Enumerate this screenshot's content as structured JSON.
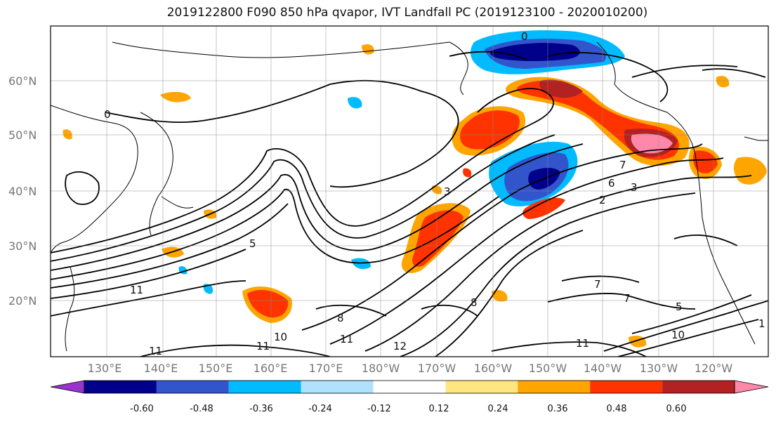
{
  "title": "2019122800 F090 850 hPa qvapor, IVT Landfall PC (2019123100 - 2020010200)",
  "lat_labels": [
    "60°N",
    "50°N",
    "40°N",
    "30°N",
    "20°N"
  ],
  "lon_labels": [
    "130°E",
    "140°E",
    "150°E",
    "160°E",
    "170°E",
    "180°W",
    "170°W",
    "160°W",
    "150°W",
    "140°W",
    "130°W",
    "120°W"
  ],
  "colorbar": {
    "tick_labels": [
      "-0.60",
      "-0.48",
      "-0.36",
      "-0.24",
      "-0.12",
      "0.12",
      "0.24",
      "0.36",
      "0.48",
      "0.60"
    ],
    "colors": [
      "#9933cc",
      "#00008b",
      "#3355cc",
      "#00bbff",
      "#b0e2ff",
      "#ffffff",
      "#ffe680",
      "#ffa500",
      "#ff3300",
      "#b22222",
      "#ff88aa"
    ]
  },
  "contour_labels": [
    "0",
    "0",
    "3",
    "7",
    "6",
    "3",
    "2",
    "5",
    "11",
    "8",
    "10",
    "11",
    "11",
    "12",
    "11",
    "7",
    "7",
    "5",
    "8",
    "10",
    "11",
    "1"
  ],
  "colors": {
    "neg_strong": "#00008b",
    "neg_mid": "#3355cc",
    "neg_light": "#00bbff",
    "neg_pale": "#b0e2ff",
    "pos_pale": "#ffe680",
    "pos_light": "#ffa500",
    "pos_mid": "#ff3300",
    "pos_strong": "#b22222",
    "pos_max": "#ff88aa"
  }
}
